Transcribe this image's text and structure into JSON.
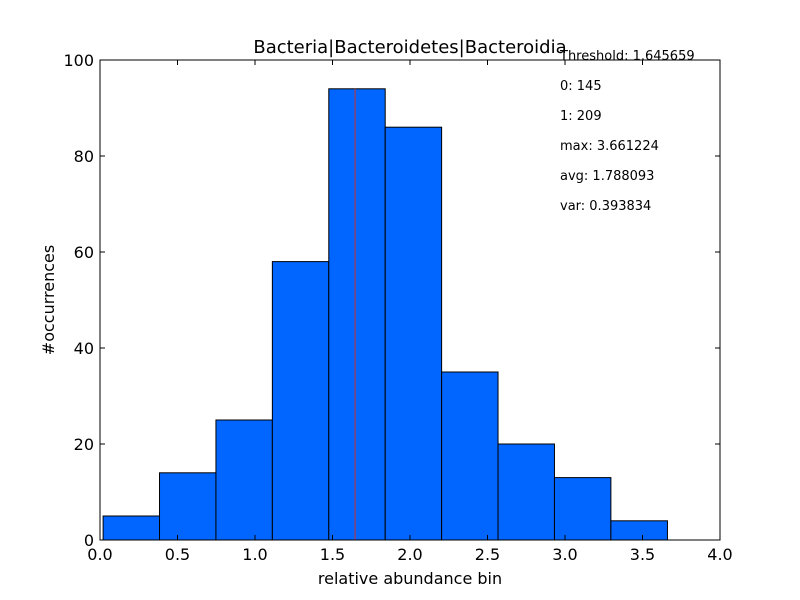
{
  "chart_data": {
    "type": "bar",
    "title": "Bacteria|Bacteroidetes|Bacteroidia",
    "xlabel": "relative abundance bin",
    "ylabel": "#occurrences",
    "xlim": [
      0.0,
      4.0
    ],
    "ylim": [
      0,
      100
    ],
    "xticks": [
      "0.0",
      "0.5",
      "1.0",
      "1.5",
      "2.0",
      "2.5",
      "3.0",
      "3.5",
      "4.0"
    ],
    "yticks": [
      "0",
      "20",
      "40",
      "60",
      "80",
      "100"
    ],
    "bin_edges": [
      0.02,
      0.384,
      0.748,
      1.112,
      1.476,
      1.84,
      2.204,
      2.568,
      2.932,
      3.296,
      3.661
    ],
    "values": [
      5,
      14,
      25,
      58,
      94,
      86,
      35,
      20,
      13,
      4
    ],
    "threshold": 1.645659,
    "grid": false,
    "colors": {
      "bar": "#0066ff",
      "threshold": "#cc3333"
    },
    "annotations": [
      "Threshold: 1.645659",
      "0: 145",
      "1: 209",
      "max: 3.661224",
      "avg: 1.788093",
      "var: 0.393834"
    ]
  }
}
